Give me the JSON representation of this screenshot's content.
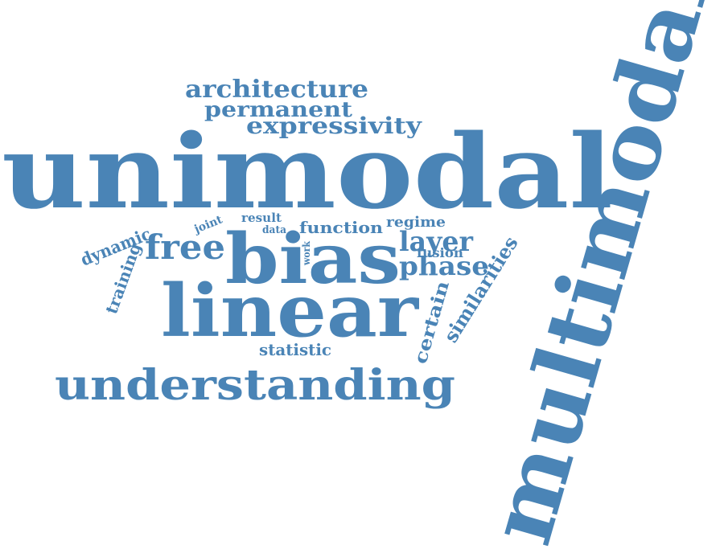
{
  "color": "#4a84b6",
  "words": {
    "multimodal": "multimodal",
    "unimodal": "unimodal",
    "bias": "bias",
    "linear": "linear",
    "understanding": "understanding",
    "architecture": "architecture",
    "permanent": "permanent",
    "expressivity": "expressivity",
    "free": "free",
    "dynamic": "dynamic",
    "training": "training",
    "joint": "joint",
    "result": "result",
    "data": "data",
    "work": "work",
    "function": "function",
    "regime": "regime",
    "layer": "layer",
    "fusion": "fusion",
    "phase": "phase",
    "certain": "certain",
    "similarities": "similarities",
    "statistic": "statistic"
  }
}
